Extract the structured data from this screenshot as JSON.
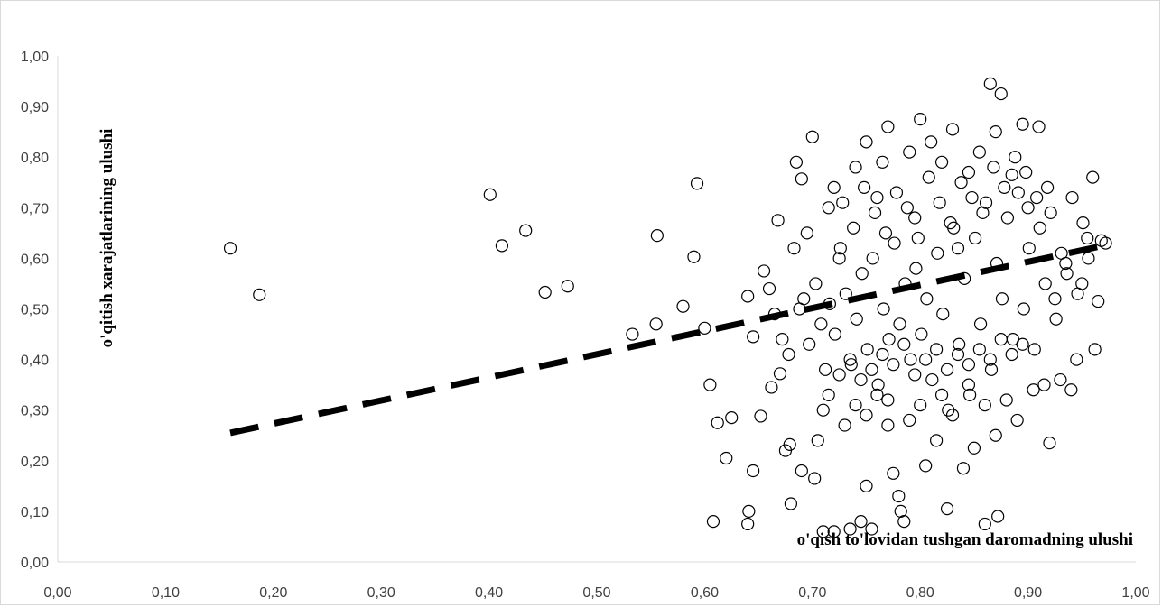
{
  "chart_data": {
    "type": "scatter",
    "xlabel": "o'qish to'lovidan tushgan daromadning ulushi",
    "ylabel": "o'qitish xarajatlarining ulushi",
    "xlim": [
      0,
      1
    ],
    "ylim": [
      0,
      1
    ],
    "x_ticks": [
      "0,00",
      "0,10",
      "0,20",
      "0,30",
      "0,40",
      "0,50",
      "0,60",
      "0,70",
      "0,80",
      "0,90",
      "1,00"
    ],
    "y_ticks": [
      "0,00",
      "0,10",
      "0,20",
      "0,30",
      "0,40",
      "0,50",
      "0,60",
      "0,70",
      "0,80",
      "0,90",
      "1,00"
    ],
    "grid": false,
    "trendline": {
      "style": "dashed",
      "color": "#000000",
      "x": [
        0.16,
        0.97
      ],
      "y": [
        0.255,
        0.625
      ]
    },
    "point_style": {
      "marker": "open-circle",
      "color": "#000000"
    },
    "points": [
      [
        0.16,
        0.62
      ],
      [
        0.187,
        0.528
      ],
      [
        0.401,
        0.726
      ],
      [
        0.412,
        0.625
      ],
      [
        0.434,
        0.655
      ],
      [
        0.452,
        0.533
      ],
      [
        0.473,
        0.545
      ],
      [
        0.533,
        0.45
      ],
      [
        0.556,
        0.645
      ],
      [
        0.555,
        0.47
      ],
      [
        0.59,
        0.603
      ],
      [
        0.593,
        0.748
      ],
      [
        0.58,
        0.505
      ],
      [
        0.6,
        0.462
      ],
      [
        0.605,
        0.35
      ],
      [
        0.608,
        0.08
      ],
      [
        0.612,
        0.275
      ],
      [
        0.62,
        0.205
      ],
      [
        0.625,
        0.285
      ],
      [
        0.64,
        0.075
      ],
      [
        0.641,
        0.1
      ],
      [
        0.645,
        0.18
      ],
      [
        0.652,
        0.288
      ],
      [
        0.655,
        0.575
      ],
      [
        0.662,
        0.345
      ],
      [
        0.668,
        0.675
      ],
      [
        0.67,
        0.372
      ],
      [
        0.675,
        0.22
      ],
      [
        0.679,
        0.232
      ],
      [
        0.68,
        0.115
      ],
      [
        0.685,
        0.79
      ],
      [
        0.69,
        0.757
      ],
      [
        0.69,
        0.18
      ],
      [
        0.695,
        0.65
      ],
      [
        0.7,
        0.84
      ],
      [
        0.702,
        0.165
      ],
      [
        0.71,
        0.06
      ],
      [
        0.71,
        0.3
      ],
      [
        0.715,
        0.7
      ],
      [
        0.72,
        0.06
      ],
      [
        0.72,
        0.74
      ],
      [
        0.725,
        0.6
      ],
      [
        0.73,
        0.27
      ],
      [
        0.735,
        0.065
      ],
      [
        0.74,
        0.78
      ],
      [
        0.745,
        0.08
      ],
      [
        0.75,
        0.83
      ],
      [
        0.75,
        0.15
      ],
      [
        0.755,
        0.065
      ],
      [
        0.76,
        0.72
      ],
      [
        0.765,
        0.79
      ],
      [
        0.77,
        0.86
      ],
      [
        0.77,
        0.27
      ],
      [
        0.775,
        0.175
      ],
      [
        0.78,
        0.13
      ],
      [
        0.782,
        0.1
      ],
      [
        0.785,
        0.08
      ],
      [
        0.79,
        0.81
      ],
      [
        0.795,
        0.68
      ],
      [
        0.8,
        0.875
      ],
      [
        0.805,
        0.19
      ],
      [
        0.81,
        0.83
      ],
      [
        0.815,
        0.24
      ],
      [
        0.82,
        0.79
      ],
      [
        0.825,
        0.105
      ],
      [
        0.83,
        0.855
      ],
      [
        0.835,
        0.62
      ],
      [
        0.84,
        0.185
      ],
      [
        0.845,
        0.77
      ],
      [
        0.85,
        0.225
      ],
      [
        0.855,
        0.81
      ],
      [
        0.86,
        0.075
      ],
      [
        0.865,
        0.945
      ],
      [
        0.87,
        0.85
      ],
      [
        0.872,
        0.09
      ],
      [
        0.875,
        0.925
      ],
      [
        0.88,
        0.32
      ],
      [
        0.885,
        0.765
      ],
      [
        0.89,
        0.28
      ],
      [
        0.895,
        0.865
      ],
      [
        0.9,
        0.7
      ],
      [
        0.905,
        0.34
      ],
      [
        0.91,
        0.86
      ],
      [
        0.915,
        0.35
      ],
      [
        0.92,
        0.235
      ],
      [
        0.925,
        0.52
      ],
      [
        0.93,
        0.36
      ],
      [
        0.935,
        0.59
      ],
      [
        0.94,
        0.34
      ],
      [
        0.945,
        0.4
      ],
      [
        0.95,
        0.55
      ],
      [
        0.955,
        0.64
      ],
      [
        0.96,
        0.76
      ],
      [
        0.962,
        0.42
      ],
      [
        0.965,
        0.515
      ],
      [
        0.968,
        0.635
      ],
      [
        0.972,
        0.63
      ],
      [
        0.64,
        0.525
      ],
      [
        0.645,
        0.445
      ],
      [
        0.66,
        0.54
      ],
      [
        0.665,
        0.49
      ],
      [
        0.672,
        0.44
      ],
      [
        0.678,
        0.41
      ],
      [
        0.683,
        0.62
      ],
      [
        0.688,
        0.5
      ],
      [
        0.692,
        0.52
      ],
      [
        0.697,
        0.43
      ],
      [
        0.703,
        0.55
      ],
      [
        0.708,
        0.47
      ],
      [
        0.712,
        0.38
      ],
      [
        0.716,
        0.51
      ],
      [
        0.721,
        0.45
      ],
      [
        0.726,
        0.62
      ],
      [
        0.731,
        0.53
      ],
      [
        0.736,
        0.39
      ],
      [
        0.741,
        0.48
      ],
      [
        0.746,
        0.57
      ],
      [
        0.751,
        0.42
      ],
      [
        0.756,
        0.6
      ],
      [
        0.761,
        0.35
      ],
      [
        0.766,
        0.5
      ],
      [
        0.771,
        0.44
      ],
      [
        0.776,
        0.63
      ],
      [
        0.781,
        0.47
      ],
      [
        0.786,
        0.55
      ],
      [
        0.791,
        0.4
      ],
      [
        0.796,
        0.58
      ],
      [
        0.801,
        0.45
      ],
      [
        0.806,
        0.52
      ],
      [
        0.811,
        0.36
      ],
      [
        0.816,
        0.61
      ],
      [
        0.821,
        0.49
      ],
      [
        0.826,
        0.3
      ],
      [
        0.831,
        0.66
      ],
      [
        0.836,
        0.43
      ],
      [
        0.841,
        0.56
      ],
      [
        0.846,
        0.33
      ],
      [
        0.851,
        0.64
      ],
      [
        0.856,
        0.47
      ],
      [
        0.861,
        0.71
      ],
      [
        0.866,
        0.38
      ],
      [
        0.871,
        0.59
      ],
      [
        0.876,
        0.52
      ],
      [
        0.881,
        0.68
      ],
      [
        0.886,
        0.44
      ],
      [
        0.891,
        0.73
      ],
      [
        0.896,
        0.5
      ],
      [
        0.901,
        0.62
      ],
      [
        0.906,
        0.42
      ],
      [
        0.911,
        0.66
      ],
      [
        0.916,
        0.55
      ],
      [
        0.921,
        0.69
      ],
      [
        0.926,
        0.48
      ],
      [
        0.931,
        0.61
      ],
      [
        0.936,
        0.57
      ],
      [
        0.941,
        0.72
      ],
      [
        0.946,
        0.53
      ],
      [
        0.951,
        0.67
      ],
      [
        0.956,
        0.6
      ],
      [
        0.728,
        0.71
      ],
      [
        0.738,
        0.66
      ],
      [
        0.748,
        0.74
      ],
      [
        0.758,
        0.69
      ],
      [
        0.768,
        0.65
      ],
      [
        0.778,
        0.73
      ],
      [
        0.788,
        0.7
      ],
      [
        0.798,
        0.64
      ],
      [
        0.808,
        0.76
      ],
      [
        0.818,
        0.71
      ],
      [
        0.828,
        0.67
      ],
      [
        0.838,
        0.75
      ],
      [
        0.848,
        0.72
      ],
      [
        0.858,
        0.69
      ],
      [
        0.868,
        0.78
      ],
      [
        0.878,
        0.74
      ],
      [
        0.888,
        0.8
      ],
      [
        0.898,
        0.77
      ],
      [
        0.908,
        0.72
      ],
      [
        0.918,
        0.74
      ],
      [
        0.74,
        0.31
      ],
      [
        0.75,
        0.29
      ],
      [
        0.76,
        0.33
      ],
      [
        0.77,
        0.32
      ],
      [
        0.79,
        0.28
      ],
      [
        0.8,
        0.31
      ],
      [
        0.82,
        0.33
      ],
      [
        0.83,
        0.29
      ],
      [
        0.845,
        0.35
      ],
      [
        0.86,
        0.31
      ],
      [
        0.87,
        0.25
      ],
      [
        0.705,
        0.24
      ],
      [
        0.715,
        0.33
      ],
      [
        0.725,
        0.37
      ],
      [
        0.735,
        0.4
      ],
      [
        0.745,
        0.36
      ],
      [
        0.755,
        0.38
      ],
      [
        0.765,
        0.41
      ],
      [
        0.775,
        0.39
      ],
      [
        0.785,
        0.43
      ],
      [
        0.795,
        0.37
      ],
      [
        0.805,
        0.4
      ],
      [
        0.815,
        0.42
      ],
      [
        0.825,
        0.38
      ],
      [
        0.835,
        0.41
      ],
      [
        0.845,
        0.39
      ],
      [
        0.855,
        0.42
      ],
      [
        0.865,
        0.4
      ],
      [
        0.875,
        0.44
      ],
      [
        0.885,
        0.41
      ],
      [
        0.895,
        0.43
      ]
    ]
  }
}
